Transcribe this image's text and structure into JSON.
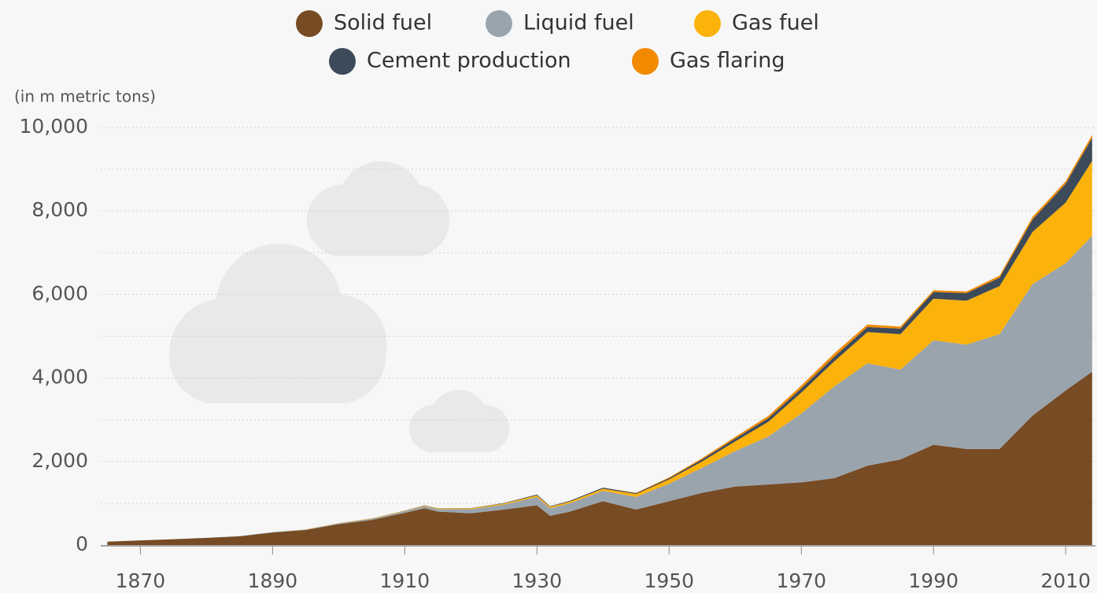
{
  "chart_data": {
    "type": "stacked_area",
    "y_axis_label": "(in m metric tons)",
    "x": [
      1865,
      1870,
      1875,
      1880,
      1885,
      1890,
      1895,
      1900,
      1905,
      1910,
      1913,
      1915,
      1920,
      1925,
      1930,
      1932,
      1935,
      1940,
      1945,
      1950,
      1955,
      1960,
      1965,
      1970,
      1975,
      1980,
      1985,
      1990,
      1995,
      2000,
      2005,
      2010,
      2014
    ],
    "series": [
      {
        "name": "Solid fuel",
        "color": "#774b23",
        "values": [
          80,
          110,
          140,
          170,
          210,
          300,
          360,
          500,
          600,
          770,
          880,
          800,
          760,
          850,
          950,
          700,
          800,
          1050,
          850,
          1050,
          1250,
          1400,
          1450,
          1500,
          1600,
          1900,
          2050,
          2400,
          2300,
          2300,
          3100,
          3700,
          4150
        ]
      },
      {
        "name": "Liquid fuel",
        "color": "#9aa4ad",
        "values": [
          0,
          0,
          0,
          5,
          5,
          10,
          10,
          20,
          30,
          40,
          50,
          60,
          100,
          120,
          200,
          180,
          200,
          250,
          300,
          420,
          600,
          850,
          1150,
          1650,
          2200,
          2450,
          2150,
          2500,
          2500,
          2750,
          3150,
          3050,
          3250
        ]
      },
      {
        "name": "Gas fuel",
        "color": "#fbb20a",
        "values": [
          0,
          0,
          0,
          0,
          0,
          0,
          5,
          5,
          10,
          10,
          15,
          15,
          20,
          25,
          40,
          35,
          40,
          50,
          70,
          100,
          150,
          230,
          350,
          500,
          600,
          750,
          850,
          1000,
          1050,
          1150,
          1250,
          1450,
          1800
        ]
      },
      {
        "name": "Cement production",
        "color": "#3c4a5a",
        "values": [
          0,
          0,
          0,
          0,
          0,
          0,
          0,
          0,
          0,
          5,
          5,
          5,
          5,
          10,
          20,
          15,
          20,
          25,
          20,
          30,
          50,
          70,
          85,
          100,
          110,
          120,
          130,
          160,
          180,
          200,
          300,
          450,
          550
        ]
      },
      {
        "name": "Gas flaring",
        "color": "#f28a00",
        "values": [
          0,
          0,
          0,
          0,
          0,
          0,
          0,
          0,
          0,
          0,
          0,
          0,
          0,
          0,
          0,
          0,
          0,
          0,
          10,
          20,
          30,
          40,
          55,
          70,
          80,
          60,
          50,
          40,
          40,
          50,
          60,
          60,
          70
        ]
      }
    ],
    "xlim": [
      1864,
      2014.5
    ],
    "xticks": [
      1870,
      1890,
      1910,
      1930,
      1950,
      1970,
      1990,
      2010
    ],
    "ylim": [
      0,
      10000
    ],
    "yticks": [
      0,
      {
        "value": 2000,
        "label": "2,000"
      },
      {
        "value": 4000,
        "label": "4,000"
      },
      {
        "value": 6000,
        "label": "6,000"
      },
      {
        "value": 8000,
        "label": "8,000"
      },
      {
        "value": 10000,
        "label": "10,000"
      }
    ],
    "minor_yticks": [
      1000,
      3000,
      5000,
      7000,
      9000
    ],
    "grid": true
  }
}
